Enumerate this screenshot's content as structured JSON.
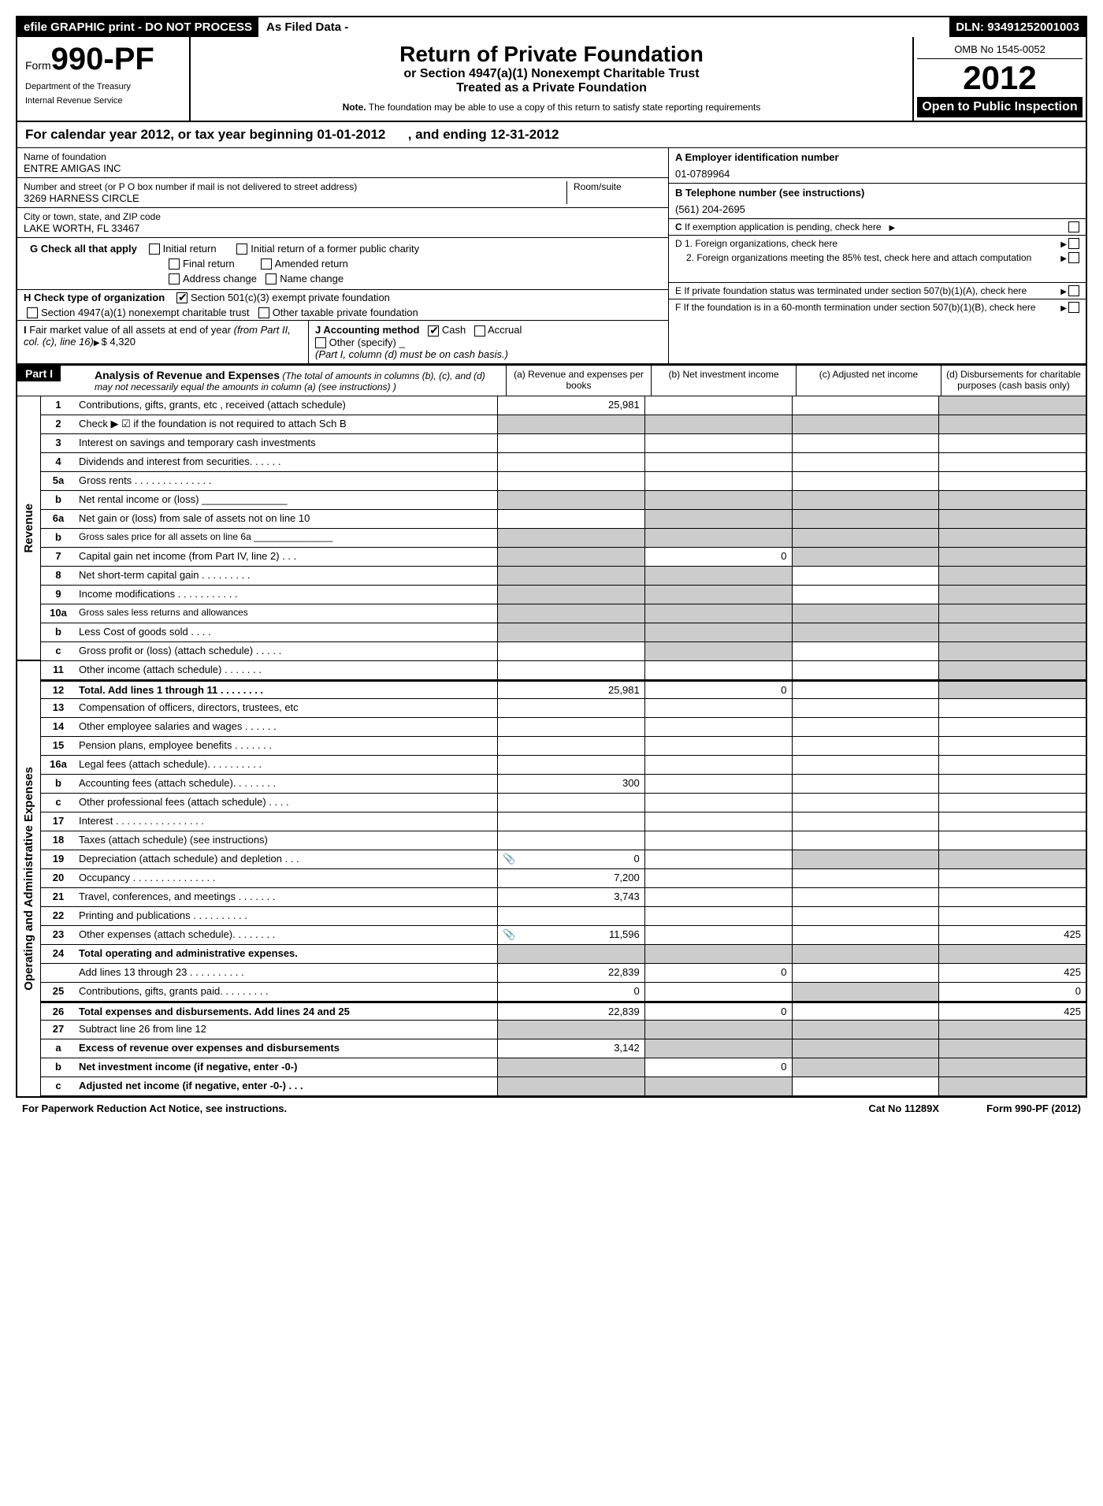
{
  "topbar": {
    "efile": "efile GRAPHIC print - DO NOT PROCESS",
    "asfiled": "As Filed Data -",
    "dln_label": "DLN:",
    "dln": "93491252001003"
  },
  "header": {
    "form_prefix": "Form",
    "form_num": "990-PF",
    "dept1": "Department of the Treasury",
    "dept2": "Internal Revenue Service",
    "title": "Return of Private Foundation",
    "sub1": "or Section 4947(a)(1) Nonexempt Charitable Trust",
    "sub2": "Treated as a Private Foundation",
    "note_label": "Note.",
    "note": "The foundation may be able to use a copy of this return to satisfy state reporting requirements",
    "omb": "OMB No 1545-0052",
    "year": "2012",
    "inspect": "Open to Public Inspection"
  },
  "cal": {
    "text1": "For calendar year 2012, or tax year beginning",
    "begin": "01-01-2012",
    "text2": ", and ending",
    "end": "12-31-2012"
  },
  "info": {
    "name_label": "Name of foundation",
    "name": "ENTRE AMIGAS INC",
    "addr_label": "Number and street (or P O  box number if mail is not delivered to street address)",
    "room_label": "Room/suite",
    "addr": "3269 HARNESS CIRCLE",
    "city_label": "City or town, state, and ZIP code",
    "city": "LAKE WORTH, FL  33467",
    "a_label": "A Employer identification number",
    "ein": "01-0789964",
    "b_label": "B Telephone number (see instructions)",
    "phone": "(561) 204-2695",
    "c_label": "C If exemption application is pending, check here",
    "g_label": "G Check all that apply",
    "g_opts": [
      "Initial return",
      "Initial return of a former public charity",
      "Final return",
      "Amended return",
      "Address change",
      "Name change"
    ],
    "h_label": "H Check type of organization",
    "h_opt1": "Section 501(c)(3) exempt private foundation",
    "h_opt2": "Section 4947(a)(1) nonexempt charitable trust",
    "h_opt3": "Other taxable private foundation",
    "i_label": "I Fair market value of all assets at end of year (from Part II, col. (c), line 16)",
    "i_val": "$  4,320",
    "j_label": "J Accounting method",
    "j_cash": "Cash",
    "j_accrual": "Accrual",
    "j_other": "Other (specify)",
    "j_note": "(Part I, column (d) must be on cash basis.)",
    "d1": "D 1. Foreign organizations, check here",
    "d2": "2. Foreign organizations meeting the 85% test, check here and attach computation",
    "e": "E  If private foundation status was terminated under section 507(b)(1)(A), check here",
    "f": "F  If the foundation is in a 60-month termination under section 507(b)(1)(B), check here"
  },
  "part1": {
    "label": "Part I",
    "title": "Analysis of Revenue and Expenses",
    "desc": "(The total of amounts in columns (b), (c), and (d) may not necessarily equal the amounts in column (a) (see instructions) )",
    "col_a": "(a) Revenue and expenses per books",
    "col_b": "(b) Net investment income",
    "col_c": "(c) Adjusted net income",
    "col_d": "(d) Disbursements for charitable purposes (cash basis only)",
    "side_rev": "Revenue",
    "side_exp": "Operating and Administrative Expenses"
  },
  "lines": {
    "l1": {
      "n": "1",
      "d": "Contributions, gifts, grants, etc , received (attach schedule)",
      "a": "25,981"
    },
    "l2": {
      "n": "2",
      "d": "Check ▶ ☑ if the foundation is not required to attach Sch  B"
    },
    "l3": {
      "n": "3",
      "d": "Interest on savings and temporary cash investments"
    },
    "l4": {
      "n": "4",
      "d": "Dividends and interest from securities. . . . . ."
    },
    "l5a": {
      "n": "5a",
      "d": "Gross rents . . . . . . . . . . . . . ."
    },
    "l5b": {
      "n": "b",
      "d": "Net rental income or (loss) _______________"
    },
    "l6a": {
      "n": "6a",
      "d": "Net gain or (loss) from sale of assets not on line 10"
    },
    "l6b": {
      "n": "b",
      "d": "Gross sales price for all assets on line 6a _______________"
    },
    "l7": {
      "n": "7",
      "d": "Capital gain net income (from Part IV, line 2) . . .",
      "b": "0"
    },
    "l8": {
      "n": "8",
      "d": "Net short-term capital gain . . . . . . . . ."
    },
    "l9": {
      "n": "9",
      "d": "Income modifications . . . . . . . . . . ."
    },
    "l10a": {
      "n": "10a",
      "d": "Gross sales less returns and allowances"
    },
    "l10b": {
      "n": "b",
      "d": "Less  Cost of goods sold . . . ."
    },
    "l10c": {
      "n": "c",
      "d": "Gross profit or (loss) (attach schedule) . . . . ."
    },
    "l11": {
      "n": "11",
      "d": "Other income (attach schedule)  . . . . . . ."
    },
    "l12": {
      "n": "12",
      "d": "Total. Add lines 1 through 11  . . . . . . . .",
      "a": "25,981",
      "b": "0"
    },
    "l13": {
      "n": "13",
      "d": "Compensation of officers, directors, trustees, etc"
    },
    "l14": {
      "n": "14",
      "d": "Other employee salaries and wages . . . . . ."
    },
    "l15": {
      "n": "15",
      "d": "Pension plans, employee benefits . . . . . . ."
    },
    "l16a": {
      "n": "16a",
      "d": "Legal fees (attach schedule). . . . . . . . . ."
    },
    "l16b": {
      "n": "b",
      "d": "Accounting fees (attach schedule). . . . . . . .",
      "a": "300"
    },
    "l16c": {
      "n": "c",
      "d": "Other professional fees (attach schedule) . . . ."
    },
    "l17": {
      "n": "17",
      "d": "Interest  . . . . . . . . . . . . . . . ."
    },
    "l18": {
      "n": "18",
      "d": "Taxes (attach schedule) (see instructions)"
    },
    "l19": {
      "n": "19",
      "d": "Depreciation (attach schedule) and depletion . . .",
      "a": "0",
      "icon": true
    },
    "l20": {
      "n": "20",
      "d": "Occupancy  . . . . . . . . . . . . . . .",
      "a": "7,200"
    },
    "l21": {
      "n": "21",
      "d": "Travel, conferences, and meetings . . . . . . .",
      "a": "3,743"
    },
    "l22": {
      "n": "22",
      "d": "Printing and publications . . . . . . . . . ."
    },
    "l23": {
      "n": "23",
      "d": "Other expenses (attach schedule). . . . . . . .",
      "a": "11,596",
      "dd": "425",
      "icon": true
    },
    "l24": {
      "n": "24",
      "d": "Total operating and administrative expenses."
    },
    "l24b": {
      "n": "",
      "d": "Add lines 13 through 23 . . . . . . . . . .",
      "a": "22,839",
      "b": "0",
      "dd": "425"
    },
    "l25": {
      "n": "25",
      "d": "Contributions, gifts, grants paid. . . . . . . . .",
      "a": "0",
      "dd": "0"
    },
    "l26": {
      "n": "26",
      "d": "Total expenses and disbursements. Add lines 24 and 25",
      "a": "22,839",
      "b": "0",
      "dd": "425"
    },
    "l27": {
      "n": "27",
      "d": "Subtract line 26 from line 12"
    },
    "l27a": {
      "n": "a",
      "d": "Excess of revenue over expenses and disbursements",
      "a": "3,142"
    },
    "l27b": {
      "n": "b",
      "d": "Net investment income (if negative, enter -0-)",
      "b": "0"
    },
    "l27c": {
      "n": "c",
      "d": "Adjusted net income (if negative, enter -0-)   . . ."
    }
  },
  "footer": {
    "paperwork": "For Paperwork Reduction Act Notice, see instructions.",
    "cat": "Cat No 11289X",
    "form": "Form 990-PF (2012)"
  }
}
